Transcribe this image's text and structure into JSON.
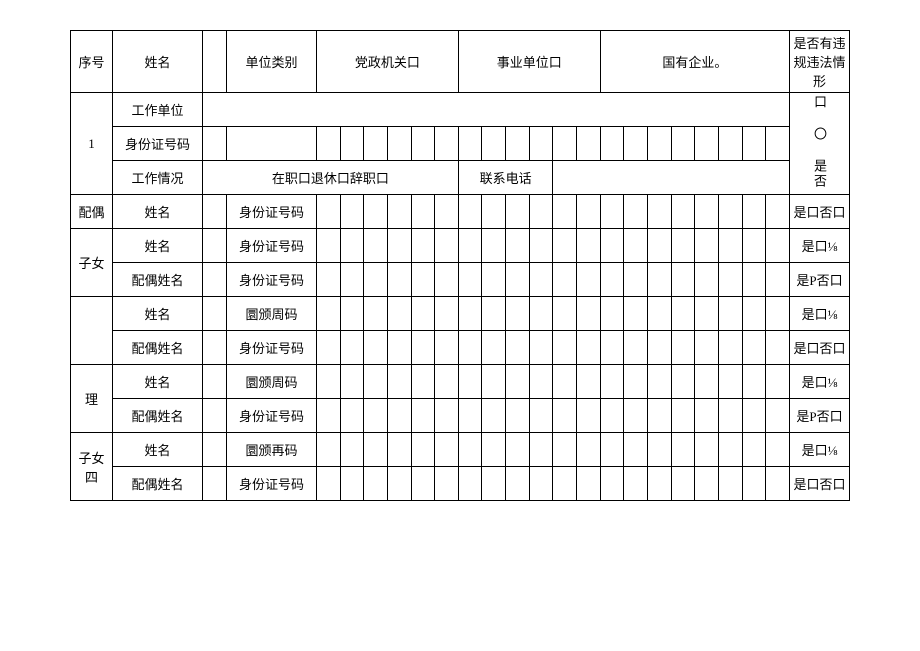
{
  "header": {
    "seq": "序号",
    "name": "姓名",
    "unit_type": "单位类别",
    "party_gov": "党政机关口",
    "institution": "事业单位口",
    "state_enterprise": "国有企业。",
    "violation": "是否有违规违法情形"
  },
  "main": {
    "seq": "1",
    "work_unit": "工作单位",
    "id_number": "身份证号码",
    "work_status": "工作情况",
    "work_status_value": "在职口退休口辞职口",
    "contact_phone": "联系电话",
    "violation_choice": "口 〇 是否"
  },
  "labels": {
    "name": "姓名",
    "spouse_name": "配偶姓名",
    "id_number": "身份证号码",
    "yuan_id1": "圜颁周码",
    "yuan_id2": "圜颁再码"
  },
  "rows": {
    "spouse": "配偶",
    "child": "子女",
    "blank": "",
    "li": "理",
    "child4": "子女四"
  },
  "violation_values": {
    "v1": "是口否口",
    "v2": "是口⅛",
    "v3": "是P否口",
    "v4": "是口否口",
    "v5": "是口⅛",
    "v6": "是口否口",
    "v7": "是口⅛",
    "v8": "是P否口",
    "v9": "是口⅛",
    "v10": "是口否口"
  }
}
